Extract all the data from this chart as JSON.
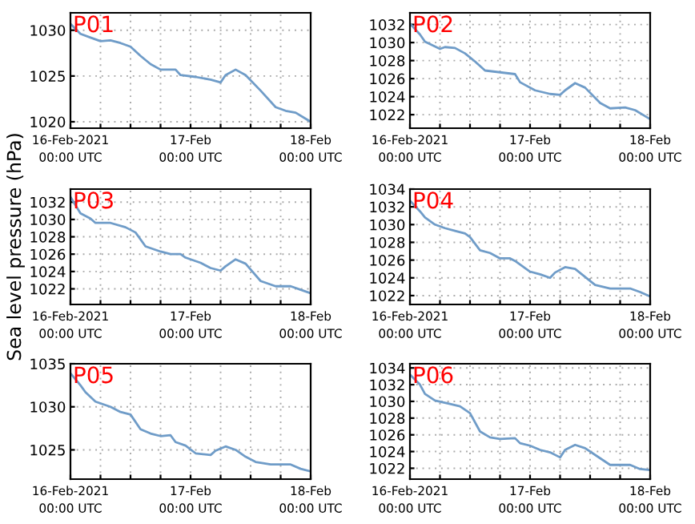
{
  "chart_data": [
    {
      "type": "line",
      "annotations": [
        "P01"
      ],
      "xlim": [
        "2021-02-16T00:00",
        "2021-02-18T00:00"
      ],
      "ylim": [
        1019.3,
        1031.9
      ],
      "yticks": [
        1020,
        1025,
        1030
      ],
      "grid": true,
      "line_style": "solid",
      "xticks": [
        {
          "value": "2021-02-16T00:00",
          "label": "16-Feb-2021\n00:00 UTC"
        },
        {
          "value": "2021-02-16T06:00",
          "label": null
        },
        {
          "value": "2021-02-16T12:00",
          "label": null
        },
        {
          "value": "2021-02-16T18:00",
          "label": null
        },
        {
          "value": "2021-02-17T00:00",
          "label": "17-Feb\n00:00 UTC"
        },
        {
          "value": "2021-02-17T06:00",
          "label": null
        },
        {
          "value": "2021-02-17T12:00",
          "label": null
        },
        {
          "value": "2021-02-17T18:00",
          "label": null
        },
        {
          "value": "2021-02-18T00:00",
          "label": "18-Feb\n00:00 UTC"
        }
      ],
      "series": [
        {
          "color": "#6f9cc8",
          "x": [
            "2021-02-16T00:00",
            "2021-02-16T02:00",
            "2021-02-16T04:00",
            "2021-02-16T06:00",
            "2021-02-16T08:00",
            "2021-02-16T10:00",
            "2021-02-16T12:00",
            "2021-02-16T14:00",
            "2021-02-16T16:00",
            "2021-02-16T18:00",
            "2021-02-16T21:00",
            "2021-02-16T22:00",
            "2021-02-17T01:00",
            "2021-02-17T04:00",
            "2021-02-17T06:00",
            "2021-02-17T07:00",
            "2021-02-17T09:00",
            "2021-02-17T11:00",
            "2021-02-17T14:00",
            "2021-02-17T17:00",
            "2021-02-17T19:00",
            "2021-02-17T21:00",
            "2021-02-18T00:00"
          ],
          "values": [
            1030.7,
            1029.6,
            1029.2,
            1028.8,
            1028.9,
            1028.6,
            1028.2,
            1027.2,
            1026.3,
            1025.7,
            1025.7,
            1025.1,
            1024.9,
            1024.6,
            1024.3,
            1025.1,
            1025.7,
            1025.1,
            1023.4,
            1021.6,
            1021.2,
            1021.0,
            1020.0
          ]
        }
      ]
    },
    {
      "type": "line",
      "annotations": [
        "P02"
      ],
      "xlim": [
        "2021-02-16T00:00",
        "2021-02-18T00:00"
      ],
      "ylim": [
        1020.5,
        1033.3
      ],
      "yticks": [
        1022,
        1024,
        1026,
        1028,
        1030,
        1032
      ],
      "grid": true,
      "line_style": "solid",
      "xticks": [
        {
          "value": "2021-02-16T00:00",
          "label": "16-Feb-2021\n00:00 UTC"
        },
        {
          "value": "2021-02-16T06:00",
          "label": null
        },
        {
          "value": "2021-02-16T12:00",
          "label": null
        },
        {
          "value": "2021-02-16T18:00",
          "label": null
        },
        {
          "value": "2021-02-17T00:00",
          "label": "17-Feb\n00:00 UTC"
        },
        {
          "value": "2021-02-17T06:00",
          "label": null
        },
        {
          "value": "2021-02-17T12:00",
          "label": null
        },
        {
          "value": "2021-02-17T18:00",
          "label": null
        },
        {
          "value": "2021-02-18T00:00",
          "label": "18-Feb\n00:00 UTC"
        }
      ],
      "series": [
        {
          "color": "#6f9cc8",
          "x": [
            "2021-02-16T00:00",
            "2021-02-16T02:00",
            "2021-02-16T03:00",
            "2021-02-16T06:00",
            "2021-02-16T07:00",
            "2021-02-16T09:00",
            "2021-02-16T11:00",
            "2021-02-16T13:00",
            "2021-02-16T15:00",
            "2021-02-16T18:00",
            "2021-02-16T21:00",
            "2021-02-16T22:00",
            "2021-02-17T01:00",
            "2021-02-17T04:00",
            "2021-02-17T06:00",
            "2021-02-17T07:00",
            "2021-02-17T09:00",
            "2021-02-17T11:00",
            "2021-02-17T14:00",
            "2021-02-17T16:00",
            "2021-02-17T19:00",
            "2021-02-17T21:00",
            "2021-02-18T00:00"
          ],
          "values": [
            1032.1,
            1030.9,
            1030.1,
            1029.3,
            1029.5,
            1029.4,
            1028.8,
            1027.9,
            1026.9,
            1026.7,
            1026.5,
            1025.6,
            1024.7,
            1024.3,
            1024.2,
            1024.7,
            1025.5,
            1025.0,
            1023.3,
            1022.7,
            1022.8,
            1022.5,
            1021.5
          ]
        }
      ]
    },
    {
      "type": "line",
      "annotations": [
        "P03"
      ],
      "ylabel": "Sea level pressure (hPa)",
      "xlim": [
        "2021-02-16T00:00",
        "2021-02-18T00:00"
      ],
      "ylim": [
        1020.2,
        1033.5
      ],
      "yticks": [
        1022,
        1024,
        1026,
        1028,
        1030,
        1032
      ],
      "grid": true,
      "line_style": "solid",
      "xticks": [
        {
          "value": "2021-02-16T00:00",
          "label": "16-Feb-2021\n00:00 UTC"
        },
        {
          "value": "2021-02-16T06:00",
          "label": null
        },
        {
          "value": "2021-02-16T12:00",
          "label": null
        },
        {
          "value": "2021-02-16T18:00",
          "label": null
        },
        {
          "value": "2021-02-17T00:00",
          "label": "17-Feb\n00:00 UTC"
        },
        {
          "value": "2021-02-17T06:00",
          "label": null
        },
        {
          "value": "2021-02-17T12:00",
          "label": null
        },
        {
          "value": "2021-02-17T18:00",
          "label": null
        },
        {
          "value": "2021-02-18T00:00",
          "label": "18-Feb\n00:00 UTC"
        }
      ],
      "series": [
        {
          "color": "#6f9cc8",
          "x": [
            "2021-02-16T00:00",
            "2021-02-16T02:00",
            "2021-02-16T04:00",
            "2021-02-16T05:00",
            "2021-02-16T08:00",
            "2021-02-16T11:00",
            "2021-02-16T13:00",
            "2021-02-16T15:00",
            "2021-02-16T18:00",
            "2021-02-16T20:00",
            "2021-02-16T22:00",
            "2021-02-16T23:00",
            "2021-02-17T02:00",
            "2021-02-17T04:00",
            "2021-02-17T06:00",
            "2021-02-17T07:00",
            "2021-02-17T09:00",
            "2021-02-17T11:00",
            "2021-02-17T14:00",
            "2021-02-17T17:00",
            "2021-02-17T20:00",
            "2021-02-17T22:00",
            "2021-02-18T00:00"
          ],
          "values": [
            1032.6,
            1030.7,
            1030.1,
            1029.6,
            1029.6,
            1029.1,
            1028.5,
            1026.9,
            1026.3,
            1026.0,
            1026.0,
            1025.6,
            1025.0,
            1024.4,
            1024.1,
            1024.6,
            1025.4,
            1024.9,
            1022.9,
            1022.3,
            1022.3,
            1021.9,
            1021.5
          ]
        }
      ]
    },
    {
      "type": "line",
      "annotations": [
        "P04"
      ],
      "xlim": [
        "2021-02-16T00:00",
        "2021-02-18T00:00"
      ],
      "ylim": [
        1021.0,
        1034
      ],
      "yticks": [
        1022,
        1024,
        1026,
        1028,
        1030,
        1032,
        1034
      ],
      "grid": true,
      "line_style": "solid",
      "xticks": [
        {
          "value": "2021-02-16T00:00",
          "label": "16-Feb-2021\n00:00 UTC"
        },
        {
          "value": "2021-02-16T06:00",
          "label": null
        },
        {
          "value": "2021-02-16T12:00",
          "label": null
        },
        {
          "value": "2021-02-16T18:00",
          "label": null
        },
        {
          "value": "2021-02-17T00:00",
          "label": "17-Feb\n00:00 UTC"
        },
        {
          "value": "2021-02-17T06:00",
          "label": null
        },
        {
          "value": "2021-02-17T12:00",
          "label": null
        },
        {
          "value": "2021-02-17T18:00",
          "label": null
        },
        {
          "value": "2021-02-18T00:00",
          "label": "18-Feb\n00:00 UTC"
        }
      ],
      "series": [
        {
          "color": "#6f9cc8",
          "x": [
            "2021-02-16T00:00",
            "2021-02-16T02:00",
            "2021-02-16T03:00",
            "2021-02-16T05:00",
            "2021-02-16T07:00",
            "2021-02-16T09:00",
            "2021-02-16T11:00",
            "2021-02-16T12:00",
            "2021-02-16T14:00",
            "2021-02-16T16:00",
            "2021-02-16T18:00",
            "2021-02-16T20:00",
            "2021-02-16T21:00",
            "2021-02-17T00:00",
            "2021-02-17T02:00",
            "2021-02-17T04:00",
            "2021-02-17T05:00",
            "2021-02-17T07:00",
            "2021-02-17T09:00",
            "2021-02-17T11:00",
            "2021-02-17T13:00",
            "2021-02-17T16:00",
            "2021-02-17T20:00",
            "2021-02-17T22:00",
            "2021-02-18T00:00"
          ],
          "values": [
            1032.7,
            1031.5,
            1030.8,
            1030.0,
            1029.6,
            1029.3,
            1029.0,
            1028.6,
            1027.1,
            1026.8,
            1026.2,
            1026.2,
            1025.9,
            1024.7,
            1024.4,
            1024.0,
            1024.6,
            1025.2,
            1025.0,
            1024.1,
            1023.2,
            1022.8,
            1022.8,
            1022.4,
            1021.9
          ]
        }
      ]
    },
    {
      "type": "line",
      "annotations": [
        "P05"
      ],
      "xlim": [
        "2021-02-16T00:00",
        "2021-02-18T00:00"
      ],
      "ylim": [
        1021.6,
        1035
      ],
      "yticks": [
        1025,
        1030,
        1035
      ],
      "grid": true,
      "line_style": "solid",
      "xticks": [
        {
          "value": "2021-02-16T00:00",
          "label": "16-Feb-2021\n00:00 UTC"
        },
        {
          "value": "2021-02-16T06:00",
          "label": null
        },
        {
          "value": "2021-02-16T12:00",
          "label": null
        },
        {
          "value": "2021-02-16T18:00",
          "label": null
        },
        {
          "value": "2021-02-17T00:00",
          "label": "17-Feb\n00:00 UTC"
        },
        {
          "value": "2021-02-17T06:00",
          "label": null
        },
        {
          "value": "2021-02-17T12:00",
          "label": null
        },
        {
          "value": "2021-02-17T18:00",
          "label": null
        },
        {
          "value": "2021-02-18T00:00",
          "label": "18-Feb\n00:00 UTC"
        }
      ],
      "series": [
        {
          "color": "#6f9cc8",
          "x": [
            "2021-02-16T00:00",
            "2021-02-16T02:00",
            "2021-02-16T03:00",
            "2021-02-16T05:00",
            "2021-02-16T08:00",
            "2021-02-16T10:00",
            "2021-02-16T12:00",
            "2021-02-16T14:00",
            "2021-02-16T16:00",
            "2021-02-16T18:00",
            "2021-02-16T20:00",
            "2021-02-16T21:00",
            "2021-02-16T23:00",
            "2021-02-17T01:00",
            "2021-02-17T04:00",
            "2021-02-17T05:00",
            "2021-02-17T07:00",
            "2021-02-17T09:00",
            "2021-02-17T11:00",
            "2021-02-17T13:00",
            "2021-02-17T16:00",
            "2021-02-17T20:00",
            "2021-02-17T22:00",
            "2021-02-18T00:00"
          ],
          "values": [
            1033.9,
            1032.5,
            1031.7,
            1030.6,
            1030.0,
            1029.4,
            1029.1,
            1027.4,
            1026.9,
            1026.6,
            1026.7,
            1025.9,
            1025.5,
            1024.6,
            1024.4,
            1024.9,
            1025.4,
            1025.0,
            1024.2,
            1023.6,
            1023.3,
            1023.3,
            1022.8,
            1022.5
          ]
        }
      ]
    },
    {
      "type": "line",
      "annotations": [
        "P06"
      ],
      "xlim": [
        "2021-02-16T00:00",
        "2021-02-18T00:00"
      ],
      "ylim": [
        1020.7,
        1034.5
      ],
      "yticks": [
        1022,
        1024,
        1026,
        1028,
        1030,
        1032,
        1034
      ],
      "grid": true,
      "line_style": "solid",
      "xticks": [
        {
          "value": "2021-02-16T00:00",
          "label": "16-Feb-2021\n00:00 UTC"
        },
        {
          "value": "2021-02-16T06:00",
          "label": null
        },
        {
          "value": "2021-02-16T12:00",
          "label": null
        },
        {
          "value": "2021-02-16T18:00",
          "label": null
        },
        {
          "value": "2021-02-17T00:00",
          "label": "17-Feb\n00:00 UTC"
        },
        {
          "value": "2021-02-17T06:00",
          "label": null
        },
        {
          "value": "2021-02-17T12:00",
          "label": null
        },
        {
          "value": "2021-02-17T18:00",
          "label": null
        },
        {
          "value": "2021-02-18T00:00",
          "label": "18-Feb\n00:00 UTC"
        }
      ],
      "series": [
        {
          "color": "#6f9cc8",
          "x": [
            "2021-02-16T00:00",
            "2021-02-16T02:00",
            "2021-02-16T03:00",
            "2021-02-16T05:00",
            "2021-02-16T08:00",
            "2021-02-16T10:00",
            "2021-02-16T12:00",
            "2021-02-16T14:00",
            "2021-02-16T16:00",
            "2021-02-16T18:00",
            "2021-02-16T21:00",
            "2021-02-16T22:00",
            "2021-02-17T00:00",
            "2021-02-17T02:00",
            "2021-02-17T04:00",
            "2021-02-17T06:00",
            "2021-02-17T07:00",
            "2021-02-17T09:00",
            "2021-02-17T11:00",
            "2021-02-17T13:00",
            "2021-02-17T16:00",
            "2021-02-17T20:00",
            "2021-02-17T22:00",
            "2021-02-18T00:00"
          ],
          "values": [
            1033.2,
            1032.0,
            1030.9,
            1030.1,
            1029.7,
            1029.4,
            1028.6,
            1026.4,
            1025.7,
            1025.5,
            1025.6,
            1025.0,
            1024.7,
            1024.2,
            1023.9,
            1023.3,
            1024.2,
            1024.8,
            1024.4,
            1023.6,
            1022.4,
            1022.4,
            1021.9,
            1021.8
          ]
        }
      ]
    }
  ]
}
